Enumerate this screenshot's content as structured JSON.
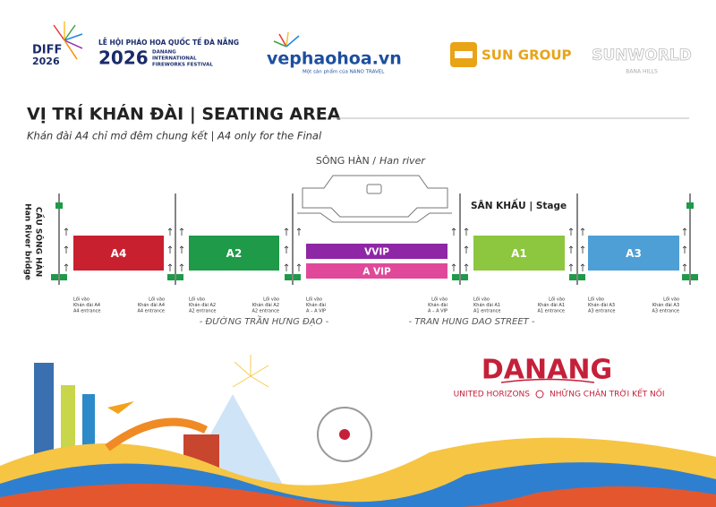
{
  "header": {
    "festival_logo": {
      "line1": "DIFF",
      "line2": "2026"
    },
    "festival_name": {
      "vi": "LỄ HỘI PHÁO HOA QUỐC TẾ ĐÀ NẴNG",
      "year": "2026",
      "en_line1": "DANANG",
      "en_line2": "INTERNATIONAL",
      "en_line3": "FIREWORKS FESTIVAL"
    },
    "partner_vephaohoa": {
      "name": "vephaohoa.vn",
      "tagline": "Một sản phẩm của NANO TRAVEL"
    },
    "partner_sungroup": "SUN GROUP",
    "partner_sunworld": {
      "name": "SUNWORLD",
      "sub": "BANA HILLS"
    }
  },
  "title": "VỊ TRÍ KHÁN ĐÀI | SEATING AREA",
  "subtitle": "Khán đài A4 chỉ mở đêm chung kết | A4 only for the Final",
  "map": {
    "river_label_vi": "SÔNG HÀN /",
    "river_label_en": "Han river",
    "stage": "SÂN KHẤU | Stage",
    "bridge_vi": "CẦU SÔNG HÀN",
    "bridge_en": "Han River bridge",
    "stands": [
      {
        "name": "A4",
        "color": "#c8202f"
      },
      {
        "name": "A2",
        "color": "#1e9a48"
      },
      {
        "name": "VVIP",
        "color": "#8e26a6"
      },
      {
        "name": "A VIP",
        "color": "#e0499a"
      },
      {
        "name": "A1",
        "color": "#8dc63f"
      },
      {
        "name": "A3",
        "color": "#4d9fd6"
      }
    ],
    "entrances": [
      {
        "lines": [
          "Lối vào",
          "Khán đài A4",
          "A4 entrance"
        ]
      },
      {
        "lines": [
          "Lối vào",
          "Khán đài A4",
          "A4 entrance"
        ]
      },
      {
        "lines": [
          "Lối vào",
          "Khán đài A2",
          "A2 entrance"
        ]
      },
      {
        "lines": [
          "Lối vào",
          "Khán đài A2",
          "A2 entrance"
        ]
      },
      {
        "lines": [
          "Lối vào",
          "Khán đài",
          "A – A VIP"
        ]
      },
      {
        "lines": [
          "Lối vào",
          "Khán đài",
          "A – A VIP"
        ]
      },
      {
        "lines": [
          "Lối vào",
          "Khán đài A1",
          "A1 entrance"
        ]
      },
      {
        "lines": [
          "Lối vào",
          "Khán đài A1",
          "A1 entrance"
        ]
      },
      {
        "lines": [
          "Lối vào",
          "Khán đài A3",
          "A3 entrance"
        ]
      },
      {
        "lines": [
          "Lối vào",
          "Khán đài A3",
          "A3 entrance"
        ]
      }
    ],
    "street_vi": "- ĐƯỜNG TRẦN HƯNG ĐẠO -",
    "street_en": "- TRAN HUNG DAO STREET -"
  },
  "branding": {
    "name": "DANANG",
    "tagline_en": "UNITED HORIZONS",
    "tagline_vi": "NHỮNG CHÂN TRỜI KẾT NỐI"
  }
}
